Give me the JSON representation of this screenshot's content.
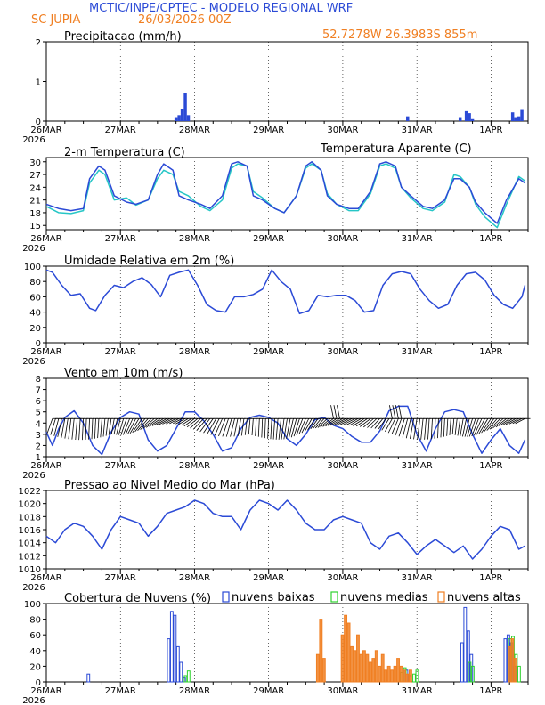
{
  "header": {
    "title": "MCTIC/INPE/CPTEC - MODELO REGIONAL WRF",
    "location": "SC JUPIA",
    "run": "26/03/2026 00Z",
    "coords": "52.7278W 26.3983S 855m"
  },
  "colors": {
    "title": "#2b4ad6",
    "orange": "#f07f22",
    "series": "#2b4ad6",
    "cyan": "#26c6c6",
    "green": "#2ed12e",
    "black": "#000000"
  },
  "x_labels": [
    "26MAR",
    "27MAR",
    "28MAR",
    "29MAR",
    "30MAR",
    "31MAR",
    "1APR"
  ],
  "year": "2026",
  "chart_data": [
    {
      "id": "precip",
      "type": "bar",
      "title": "Precipitacao (mm/h)",
      "ylim": [
        0,
        2
      ],
      "yticks": [
        0,
        1,
        2
      ],
      "yticklabels": [
        "0",
        "1",
        "2"
      ],
      "x_hours": [
        42,
        43,
        44,
        45,
        46,
        117,
        134,
        136,
        137,
        138,
        151,
        152,
        153,
        154
      ],
      "values": [
        0.1,
        0.15,
        0.3,
        0.7,
        0.15,
        0.12,
        0.1,
        0.25,
        0.2,
        0.05,
        0.22,
        0.1,
        0.12,
        0.28
      ]
    },
    {
      "id": "temp",
      "type": "line",
      "title": "2-m Temperatura (C)",
      "legend": "Temperatura Aparente (C)",
      "ylim": [
        14,
        31
      ],
      "yticks": [
        15,
        18,
        21,
        24,
        27,
        30
      ],
      "yticklabels": [
        "15",
        "18",
        "21",
        "24",
        "27",
        "30"
      ],
      "series": [
        {
          "name": "Temperatura",
          "color": "#2b4ad6",
          "x": [
            0,
            4,
            8,
            12,
            14,
            17,
            19,
            22,
            26,
            29,
            33,
            36,
            38,
            41,
            43,
            46,
            50,
            53,
            57,
            60,
            62,
            65,
            67,
            70,
            74,
            77,
            81,
            84,
            86,
            89,
            91,
            94,
            98,
            101,
            105,
            108,
            110,
            113,
            115,
            118,
            122,
            125,
            129,
            132,
            134,
            137,
            139,
            142,
            146,
            149,
            153,
            155
          ],
          "y": [
            20,
            19,
            18.5,
            19,
            26,
            29,
            28,
            22,
            20.5,
            20,
            21,
            27,
            29.5,
            28,
            22,
            21,
            20,
            19,
            22,
            29.5,
            30,
            29,
            22,
            21,
            19,
            18,
            22,
            29,
            30,
            28,
            22,
            20,
            19,
            19,
            23,
            29.5,
            30,
            29,
            24,
            22,
            19.5,
            19,
            21,
            26,
            26,
            24,
            20.5,
            18,
            15.5,
            21,
            26,
            25
          ]
        },
        {
          "name": "Temperatura Aparente",
          "color": "#26c6c6",
          "x": [
            0,
            4,
            8,
            12,
            14,
            17,
            19,
            22,
            26,
            29,
            33,
            36,
            38,
            41,
            43,
            46,
            50,
            53,
            57,
            60,
            62,
            65,
            67,
            70,
            74,
            77,
            81,
            84,
            86,
            89,
            91,
            94,
            98,
            101,
            105,
            108,
            110,
            113,
            115,
            118,
            122,
            125,
            129,
            132,
            134,
            137,
            139,
            142,
            146,
            149,
            153,
            155
          ],
          "y": [
            19.5,
            18,
            17.8,
            18.5,
            25,
            28,
            27,
            21,
            21.5,
            19.8,
            21,
            26,
            28,
            27,
            23,
            22,
            19.5,
            18.5,
            21,
            28.5,
            29.5,
            29,
            23,
            21.5,
            19,
            18,
            22,
            28.5,
            29.5,
            28,
            22.5,
            20,
            18.5,
            18.5,
            22.5,
            29,
            29.5,
            28.5,
            24,
            21.5,
            19,
            18.5,
            20.5,
            27,
            26.5,
            24,
            20,
            17,
            14.5,
            20,
            26.5,
            25.5
          ]
        }
      ]
    },
    {
      "id": "umid",
      "type": "line",
      "title": "Umidade Relativa em 2m (%)",
      "ylim": [
        0,
        100
      ],
      "yticks": [
        0,
        20,
        40,
        60,
        80,
        100
      ],
      "yticklabels": [
        "0",
        "20",
        "40",
        "60",
        "80",
        "100"
      ],
      "series": [
        {
          "name": "Umidade",
          "color": "#2b4ad6",
          "x": [
            0,
            2,
            5,
            8,
            11,
            14,
            16,
            19,
            22,
            25,
            28,
            31,
            34,
            37,
            40,
            43,
            46,
            49,
            52,
            55,
            58,
            61,
            64,
            67,
            70,
            73,
            76,
            79,
            82,
            85,
            88,
            91,
            94,
            97,
            100,
            103,
            106,
            109,
            112,
            115,
            118,
            121,
            124,
            127,
            130,
            133,
            136,
            139,
            142,
            145,
            148,
            151,
            154,
            155
          ],
          "y": [
            95,
            92,
            75,
            62,
            64,
            45,
            42,
            62,
            75,
            72,
            80,
            85,
            76,
            60,
            88,
            92,
            95,
            75,
            50,
            42,
            40,
            60,
            60,
            63,
            70,
            95,
            80,
            70,
            38,
            42,
            62,
            60,
            62,
            62,
            55,
            40,
            42,
            75,
            90,
            93,
            90,
            70,
            55,
            45,
            50,
            75,
            90,
            92,
            82,
            62,
            50,
            45,
            60,
            75
          ]
        }
      ]
    },
    {
      "id": "vento",
      "type": "line",
      "title": "Vento em 10m (m/s)",
      "ylim": [
        1,
        8
      ],
      "yticks": [
        1,
        2,
        3,
        4,
        5,
        6,
        7,
        8
      ],
      "yticklabels": [
        "1",
        "2",
        "3",
        "4",
        "5",
        "6",
        "7",
        "8"
      ],
      "series": [
        {
          "name": "Vento",
          "color": "#2b4ad6",
          "x": [
            0,
            2,
            4,
            6,
            9,
            12,
            15,
            18,
            21,
            24,
            27,
            30,
            33,
            36,
            39,
            42,
            45,
            48,
            51,
            54,
            57,
            60,
            63,
            66,
            69,
            72,
            75,
            78,
            81,
            84,
            87,
            90,
            93,
            96,
            99,
            102,
            105,
            108,
            111,
            114,
            117,
            120,
            123,
            126,
            129,
            132,
            135,
            138,
            141,
            144,
            147,
            150,
            153,
            155
          ],
          "y": [
            3.2,
            2.0,
            3.5,
            4.5,
            5.1,
            4.0,
            2.0,
            1.2,
            3.2,
            4.5,
            5.0,
            4.8,
            2.5,
            1.5,
            2.0,
            3.5,
            5.0,
            5.0,
            4.2,
            3.0,
            1.5,
            1.8,
            3.5,
            4.5,
            4.7,
            4.5,
            4.0,
            2.6,
            2.0,
            3.0,
            4.3,
            4.5,
            3.8,
            3.5,
            2.8,
            2.3,
            2.3,
            3.3,
            5.1,
            5.5,
            5.5,
            3.0,
            1.5,
            3.5,
            5.0,
            5.2,
            5.0,
            3.0,
            1.3,
            2.5,
            3.5,
            2.0,
            1.3,
            2.5
          ]
        }
      ],
      "barbs_base_y": 4.4
    },
    {
      "id": "pressao",
      "type": "line",
      "title": "Pressao ao Nivel Medio do Mar (hPa)",
      "ylim": [
        1010,
        1022
      ],
      "yticks": [
        1010,
        1012,
        1014,
        1016,
        1018,
        1020,
        1022
      ],
      "yticklabels": [
        "1010",
        "1012",
        "1014",
        "1016",
        "1018",
        "1020",
        "1022"
      ],
      "series": [
        {
          "name": "Pressao",
          "color": "#2b4ad6",
          "x": [
            0,
            3,
            6,
            9,
            12,
            15,
            18,
            21,
            24,
            27,
            30,
            33,
            36,
            39,
            42,
            45,
            48,
            51,
            54,
            57,
            60,
            63,
            66,
            69,
            72,
            75,
            78,
            81,
            84,
            87,
            90,
            93,
            96,
            99,
            102,
            105,
            108,
            111,
            114,
            117,
            120,
            123,
            126,
            129,
            132,
            135,
            138,
            141,
            144,
            147,
            150,
            153,
            155
          ],
          "y": [
            1015,
            1014,
            1016,
            1017,
            1016.5,
            1015,
            1013,
            1016,
            1018,
            1017.5,
            1017,
            1015,
            1016.5,
            1018.5,
            1019,
            1019.5,
            1020.5,
            1020,
            1018.5,
            1018,
            1018,
            1016,
            1019,
            1020.5,
            1020,
            1019,
            1020.5,
            1019,
            1017,
            1016,
            1016,
            1017.5,
            1018,
            1017.5,
            1017,
            1014,
            1013,
            1015,
            1015.5,
            1014,
            1012.2,
            1013.5,
            1014.5,
            1013.5,
            1012.5,
            1013.5,
            1011.5,
            1013,
            1015,
            1016.5,
            1016,
            1013,
            1013.5
          ]
        }
      ]
    },
    {
      "id": "nuvens",
      "type": "bar",
      "title": "Cobertura de Nuvens (%)",
      "ylim": [
        0,
        100
      ],
      "yticks": [
        0,
        20,
        40,
        60,
        80,
        100
      ],
      "yticklabels": [
        "0",
        "20",
        "40",
        "60",
        "80",
        "100"
      ],
      "legend": [
        "nuvens baixas",
        "nuvens medias",
        "nuvens altas"
      ],
      "series": [
        {
          "name": "nuvens baixas",
          "color": "#2b4ad6",
          "x": [
            14,
            40,
            41,
            42,
            43,
            44,
            45,
            117,
            118,
            135,
            136,
            137,
            138,
            149,
            150,
            151,
            152
          ],
          "values": [
            10,
            55,
            90,
            85,
            45,
            25,
            5,
            15,
            8,
            50,
            95,
            65,
            35,
            55,
            60,
            50,
            20
          ]
        },
        {
          "name": "nuvens medias",
          "color": "#2ed12e",
          "x": [
            45,
            46,
            115,
            116,
            119,
            120,
            137,
            138,
            150,
            151,
            152,
            153
          ],
          "values": [
            8,
            14,
            12,
            18,
            10,
            15,
            25,
            20,
            55,
            58,
            35,
            20
          ]
        },
        {
          "name": "nuvens altas",
          "color": "#f07f22",
          "x": [
            88,
            89,
            90,
            96,
            97,
            98,
            99,
            100,
            101,
            102,
            103,
            104,
            105,
            106,
            107,
            108,
            109,
            110,
            111,
            112,
            113,
            114,
            115,
            116,
            117,
            118,
            150,
            151,
            152
          ],
          "values": [
            35,
            80,
            30,
            60,
            85,
            75,
            45,
            40,
            60,
            35,
            40,
            35,
            25,
            30,
            40,
            20,
            35,
            15,
            20,
            15,
            20,
            30,
            20,
            15,
            10,
            15,
            45,
            55,
            30
          ]
        }
      ]
    }
  ]
}
